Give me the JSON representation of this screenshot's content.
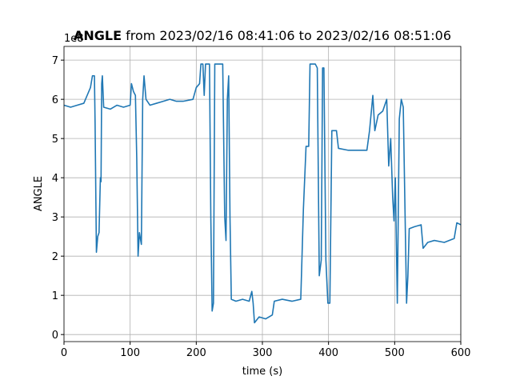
{
  "chart_data": {
    "type": "line",
    "title": "ANGLE",
    "subtitle": "from 2023/02/16 08:41:06 to 2023/02/16 08:51:06",
    "x_label": "time (s)",
    "y_label": "ANGLE",
    "y_offset_label": "1e8",
    "xlim": [
      0,
      600
    ],
    "ylim": [
      -0.18,
      7.35
    ],
    "xticks": [
      0,
      100,
      200,
      300,
      400,
      500,
      600
    ],
    "yticks": [
      0,
      1,
      2,
      3,
      4,
      5,
      6,
      7
    ],
    "grid": true,
    "series": [
      {
        "name": "ANGLE",
        "color": "#1f77b4",
        "x": [
          0,
          10,
          20,
          30,
          35,
          40,
          43,
          46,
          47,
          49,
          51,
          53,
          55,
          56,
          57,
          58,
          60,
          70,
          80,
          90,
          100,
          102,
          105,
          108,
          110,
          112,
          114,
          117,
          119,
          121,
          124,
          130,
          140,
          150,
          160,
          170,
          180,
          195,
          200,
          205,
          207,
          210,
          212,
          214,
          220,
          222,
          224,
          226,
          228,
          235,
          240,
          243,
          245,
          247,
          249,
          251,
          253,
          260,
          270,
          280,
          284,
          286,
          288,
          295,
          305,
          315,
          318,
          330,
          345,
          358,
          362,
          366,
          370,
          372,
          380,
          383,
          386,
          389,
          391,
          393,
          396,
          399,
          402,
          405,
          412,
          415,
          430,
          445,
          458,
          462,
          467,
          470,
          475,
          482,
          488,
          491,
          494,
          497,
          499,
          501,
          504,
          507,
          510,
          513,
          518,
          520,
          522,
          530,
          540,
          543,
          550,
          560,
          575,
          590,
          594,
          600
        ],
        "values": [
          5.85,
          5.8,
          5.85,
          5.9,
          6.1,
          6.3,
          6.6,
          6.6,
          5.4,
          2.1,
          2.5,
          2.6,
          4.0,
          3.9,
          6.4,
          6.6,
          5.8,
          5.75,
          5.85,
          5.8,
          5.85,
          6.4,
          6.2,
          6.1,
          4.5,
          2.0,
          2.6,
          2.3,
          6.0,
          6.6,
          6.0,
          5.85,
          5.9,
          5.95,
          6.0,
          5.95,
          5.95,
          6.0,
          6.3,
          6.4,
          6.9,
          6.9,
          6.1,
          6.9,
          6.9,
          3.0,
          0.6,
          0.8,
          6.9,
          6.9,
          6.9,
          3.0,
          2.4,
          6.0,
          6.6,
          3.0,
          0.9,
          0.85,
          0.9,
          0.85,
          1.1,
          0.8,
          0.3,
          0.45,
          0.4,
          0.5,
          0.85,
          0.9,
          0.85,
          0.9,
          3.2,
          4.8,
          4.8,
          6.9,
          6.9,
          6.8,
          1.5,
          1.9,
          6.8,
          6.8,
          1.9,
          0.8,
          0.8,
          5.2,
          5.2,
          4.75,
          4.7,
          4.7,
          4.7,
          5.2,
          6.1,
          5.2,
          5.6,
          5.7,
          6.0,
          4.3,
          5.0,
          3.5,
          2.9,
          4.0,
          0.8,
          5.5,
          6.0,
          5.8,
          0.8,
          1.5,
          2.7,
          2.75,
          2.8,
          2.2,
          2.35,
          2.4,
          2.35,
          2.45,
          2.85,
          2.8
        ]
      }
    ]
  }
}
